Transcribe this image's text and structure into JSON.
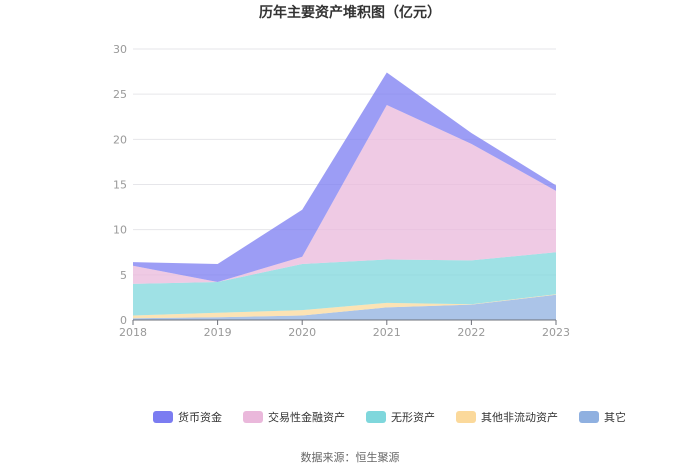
{
  "chart_data": {
    "type": "area",
    "stacked": true,
    "title": "历年主要资产堆积图（亿元）",
    "xlabel": "",
    "ylabel": "",
    "categories": [
      "2018",
      "2019",
      "2020",
      "2021",
      "2022",
      "2023"
    ],
    "ylim": [
      0,
      30
    ],
    "yticks": [
      "0",
      "5",
      "10",
      "15",
      "20",
      "25",
      "30"
    ],
    "grid": true,
    "legend_position": "bottom",
    "series": [
      {
        "name": "其它",
        "color": "#8fb0e0",
        "values": [
          0.2,
          0.3,
          0.5,
          1.4,
          1.7,
          2.8
        ]
      },
      {
        "name": "其他非流动资产",
        "color": "#fbd99b",
        "values": [
          0.3,
          0.5,
          0.6,
          0.5,
          0.05,
          0.05
        ]
      },
      {
        "name": "无形资产",
        "color": "#7fd7dc",
        "values": [
          3.5,
          3.4,
          5.1,
          4.8,
          4.85,
          4.65
        ]
      },
      {
        "name": "交易性金融资产",
        "color": "#eab8db",
        "values": [
          2.0,
          0.0,
          0.8,
          17.1,
          12.9,
          6.8
        ]
      },
      {
        "name": "货币资金",
        "color": "#7b7cf1",
        "values": [
          0.4,
          2.0,
          5.2,
          3.6,
          1.2,
          0.6
        ]
      }
    ],
    "legend_order": [
      "货币资金",
      "交易性金融资产",
      "无形资产",
      "其他非流动资产",
      "其它"
    ],
    "source": "数据来源：恒生聚源"
  }
}
